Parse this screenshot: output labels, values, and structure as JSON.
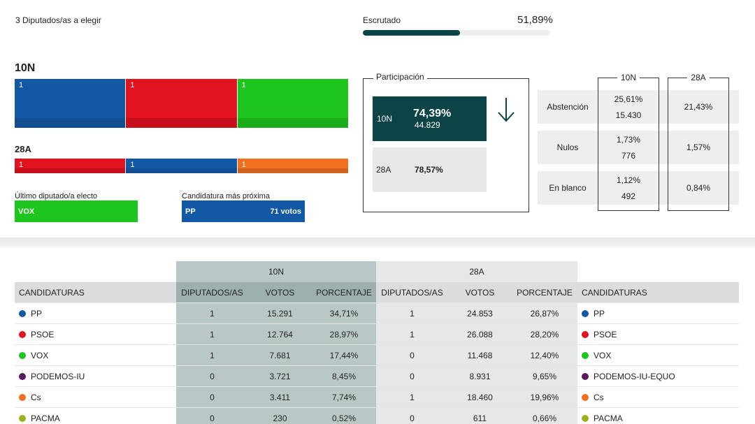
{
  "header": {
    "seats_total": "3 Diputados/as a elegir",
    "escrutado_label": "Escrutado",
    "escrutado_value": "51,89%",
    "escrutado_fraction": 0.5189
  },
  "seats": {
    "n10": {
      "label": "10N",
      "items": [
        {
          "num": "1",
          "color": "#1358a5"
        },
        {
          "num": "1",
          "color": "#e2121e"
        },
        {
          "num": "1",
          "color": "#1ec51e"
        }
      ]
    },
    "a28": {
      "label": "28A",
      "items": [
        {
          "num": "1",
          "color": "#e2121e"
        },
        {
          "num": "1",
          "color": "#1358a5"
        },
        {
          "num": "1",
          "color": "#f07020"
        }
      ]
    }
  },
  "last_elected": {
    "label": "Último diputado/a electo",
    "party": "VOX",
    "color": "#1ec51e"
  },
  "nearest": {
    "label": "Candidatura más próxima",
    "party": "PP",
    "votes": "71 votos",
    "color": "#1358a5"
  },
  "participation": {
    "title": "Participación",
    "n10": {
      "label": "10N",
      "pct": "74,39%",
      "count": "44.829"
    },
    "a28": {
      "label": "28A",
      "pct": "78,57%"
    }
  },
  "stats": {
    "col1": "10N",
    "col2": "28A",
    "rows": [
      {
        "name": "Abstención",
        "v10_pct": "25,61%",
        "v10_count": "15.430",
        "v28": "21,43%"
      },
      {
        "name": "Nulos",
        "v10_pct": "1,73%",
        "v10_count": "776",
        "v28": "1,57%"
      },
      {
        "name": "En blanco",
        "v10_pct": "1,12%",
        "v10_count": "492",
        "v28": "0,84%"
      }
    ]
  },
  "results": {
    "group10": "10N",
    "group28": "28A",
    "headers": {
      "cand": "CANDIDATURAS",
      "dip": "DIPUTADOS/AS",
      "votos": "VOTOS",
      "pct": "PORCENTAJE"
    },
    "rows": [
      {
        "name": "PP",
        "name28": "PP",
        "color": "#1358a5",
        "d10": "1",
        "v10": "15.291",
        "p10": "34,71%",
        "d28": "1",
        "v28": "24.853",
        "p28": "26,87%"
      },
      {
        "name": "PSOE",
        "name28": "PSOE",
        "color": "#e2121e",
        "d10": "1",
        "v10": "12.764",
        "p10": "28,97%",
        "d28": "1",
        "v28": "26.088",
        "p28": "28,20%"
      },
      {
        "name": "VOX",
        "name28": "VOX",
        "color": "#1ec51e",
        "d10": "1",
        "v10": "7.681",
        "p10": "17,44%",
        "d28": "0",
        "v28": "11.468",
        "p28": "12,40%"
      },
      {
        "name": "PODEMOS-IU",
        "name28": "PODEMOS-IU-EQUO",
        "color": "#5c1a5e",
        "d10": "0",
        "v10": "3.721",
        "p10": "8,45%",
        "d28": "0",
        "v28": "8.931",
        "p28": "9,65%"
      },
      {
        "name": "Cs",
        "name28": "Cs",
        "color": "#f07020",
        "d10": "0",
        "v10": "3.411",
        "p10": "7,74%",
        "d28": "1",
        "v28": "18.460",
        "p28": "19,96%"
      },
      {
        "name": "PACMA",
        "name28": "PACMA",
        "color": "#a0b020",
        "d10": "0",
        "v10": "230",
        "p10": "0,52%",
        "d28": "0",
        "v28": "611",
        "p28": "0,66%"
      }
    ]
  }
}
